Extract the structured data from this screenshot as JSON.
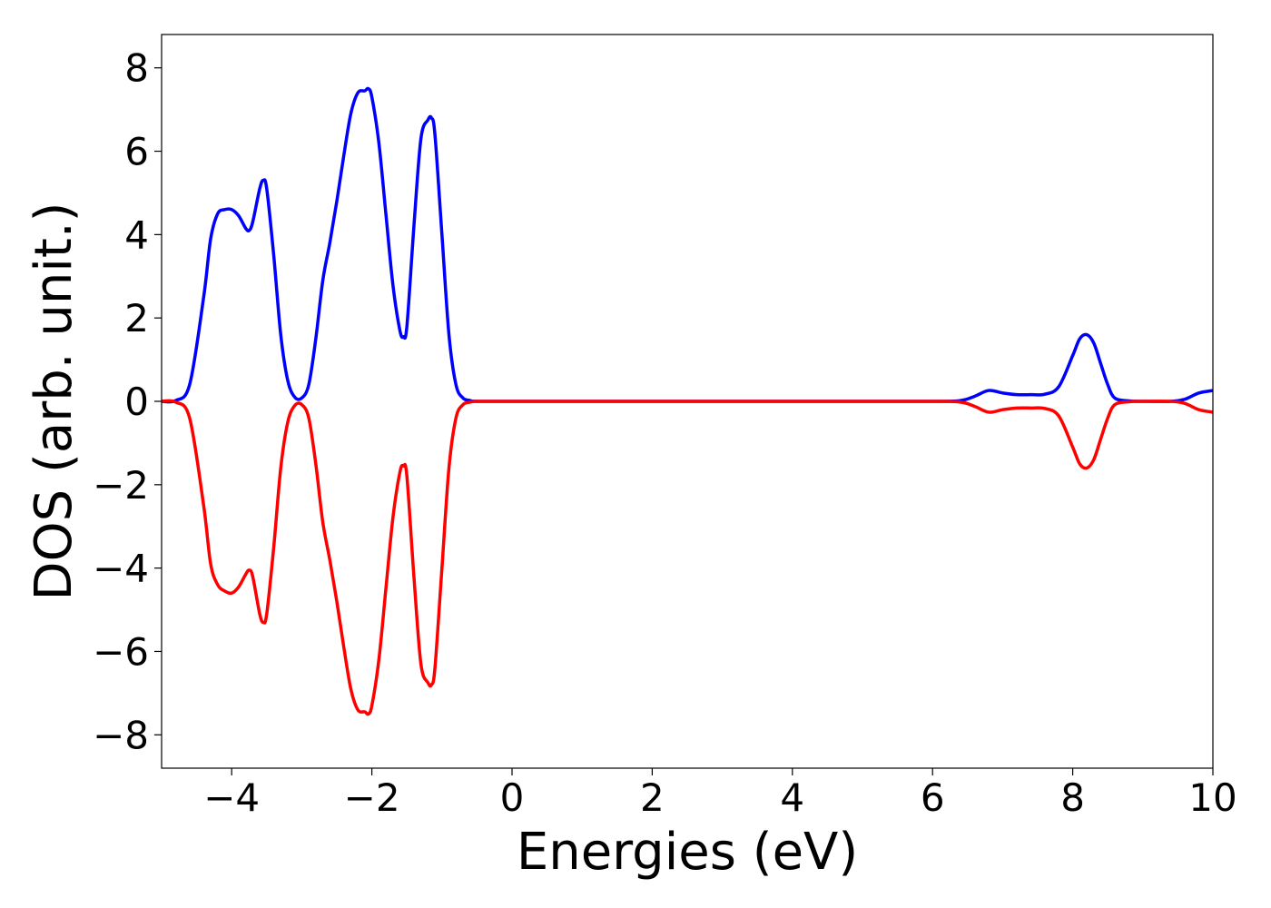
{
  "chart_data": {
    "type": "line",
    "title": "",
    "xlabel": "Energies (eV)",
    "ylabel": "DOS (arb. unit.)",
    "xlim": [
      -5,
      10
    ],
    "ylim": [
      -8.8,
      8.8
    ],
    "xticks": [
      -4,
      -2,
      0,
      2,
      4,
      6,
      8,
      10
    ],
    "yticks": [
      -8,
      -6,
      -4,
      -2,
      0,
      2,
      4,
      6,
      8
    ],
    "xtick_labels": [
      "−4",
      "−2",
      "0",
      "2",
      "4",
      "6",
      "8",
      "10"
    ],
    "ytick_labels": [
      "−8",
      "−6",
      "−4",
      "−2",
      "0",
      "2",
      "4",
      "6",
      "8"
    ],
    "grid": false,
    "legend": "none",
    "series": [
      {
        "color": "#0000ff",
        "x": [
          -5.0,
          -4.8,
          -4.6,
          -4.4,
          -4.3,
          -4.2,
          -4.1,
          -4.0,
          -3.9,
          -3.8,
          -3.75,
          -3.7,
          -3.6,
          -3.55,
          -3.5,
          -3.4,
          -3.3,
          -3.2,
          -3.1,
          -3.0,
          -2.9,
          -2.8,
          -2.7,
          -2.6,
          -2.5,
          -2.4,
          -2.3,
          -2.2,
          -2.1,
          -2.05,
          -2.0,
          -1.9,
          -1.8,
          -1.7,
          -1.6,
          -1.55,
          -1.5,
          -1.4,
          -1.3,
          -1.2,
          -1.15,
          -1.1,
          -1.0,
          -0.9,
          -0.8,
          -0.7,
          -0.6,
          -0.5,
          0.0,
          2.0,
          4.0,
          6.0,
          6.4,
          6.6,
          6.8,
          7.0,
          7.2,
          7.4,
          7.6,
          7.8,
          8.0,
          8.1,
          8.2,
          8.3,
          8.4,
          8.5,
          8.6,
          8.8,
          9.0,
          9.4,
          9.6,
          9.8,
          10.0
        ],
        "y": [
          0.0,
          0.02,
          0.4,
          2.5,
          3.9,
          4.5,
          4.6,
          4.6,
          4.45,
          4.15,
          4.1,
          4.3,
          5.1,
          5.3,
          5.1,
          3.5,
          1.6,
          0.5,
          0.1,
          0.08,
          0.4,
          1.5,
          2.9,
          3.8,
          4.8,
          5.9,
          6.9,
          7.4,
          7.45,
          7.5,
          7.3,
          6.2,
          4.5,
          2.8,
          1.7,
          1.55,
          1.8,
          4.2,
          6.3,
          6.75,
          6.8,
          6.4,
          4.0,
          1.6,
          0.4,
          0.08,
          0.02,
          0.0,
          0.0,
          0.0,
          0.0,
          0.0,
          0.02,
          0.12,
          0.26,
          0.2,
          0.16,
          0.16,
          0.17,
          0.35,
          1.1,
          1.5,
          1.6,
          1.4,
          0.9,
          0.4,
          0.08,
          0.01,
          0.0,
          0.0,
          0.05,
          0.2,
          0.26
        ]
      },
      {
        "color": "#ff0000",
        "x": [
          -5.0,
          -4.8,
          -4.6,
          -4.4,
          -4.3,
          -4.2,
          -4.1,
          -4.0,
          -3.9,
          -3.8,
          -3.75,
          -3.7,
          -3.6,
          -3.55,
          -3.5,
          -3.4,
          -3.3,
          -3.2,
          -3.1,
          -3.0,
          -2.9,
          -2.8,
          -2.7,
          -2.6,
          -2.5,
          -2.4,
          -2.3,
          -2.2,
          -2.1,
          -2.05,
          -2.0,
          -1.9,
          -1.8,
          -1.7,
          -1.6,
          -1.55,
          -1.5,
          -1.4,
          -1.3,
          -1.2,
          -1.15,
          -1.1,
          -1.0,
          -0.9,
          -0.8,
          -0.7,
          -0.6,
          -0.5,
          0.0,
          2.0,
          4.0,
          6.0,
          6.4,
          6.6,
          6.8,
          7.0,
          7.2,
          7.4,
          7.6,
          7.8,
          8.0,
          8.1,
          8.2,
          8.3,
          8.4,
          8.5,
          8.6,
          8.8,
          9.0,
          9.4,
          9.6,
          9.8,
          10.0
        ],
        "y": [
          0.0,
          -0.02,
          -0.4,
          -2.5,
          -3.9,
          -4.4,
          -4.55,
          -4.6,
          -4.45,
          -4.15,
          -4.05,
          -4.2,
          -5.1,
          -5.3,
          -5.1,
          -3.5,
          -1.6,
          -0.5,
          -0.1,
          -0.08,
          -0.4,
          -1.5,
          -2.9,
          -3.8,
          -4.8,
          -5.9,
          -6.9,
          -7.4,
          -7.45,
          -7.5,
          -7.3,
          -6.2,
          -4.5,
          -2.8,
          -1.7,
          -1.55,
          -1.8,
          -4.2,
          -6.3,
          -6.75,
          -6.8,
          -6.4,
          -4.0,
          -1.6,
          -0.4,
          -0.08,
          -0.02,
          0.0,
          0.0,
          0.0,
          0.0,
          0.0,
          -0.02,
          -0.12,
          -0.26,
          -0.2,
          -0.16,
          -0.16,
          -0.17,
          -0.35,
          -1.1,
          -1.5,
          -1.6,
          -1.4,
          -0.9,
          -0.4,
          -0.08,
          -0.01,
          0.0,
          0.0,
          -0.05,
          -0.2,
          -0.26
        ]
      }
    ]
  }
}
